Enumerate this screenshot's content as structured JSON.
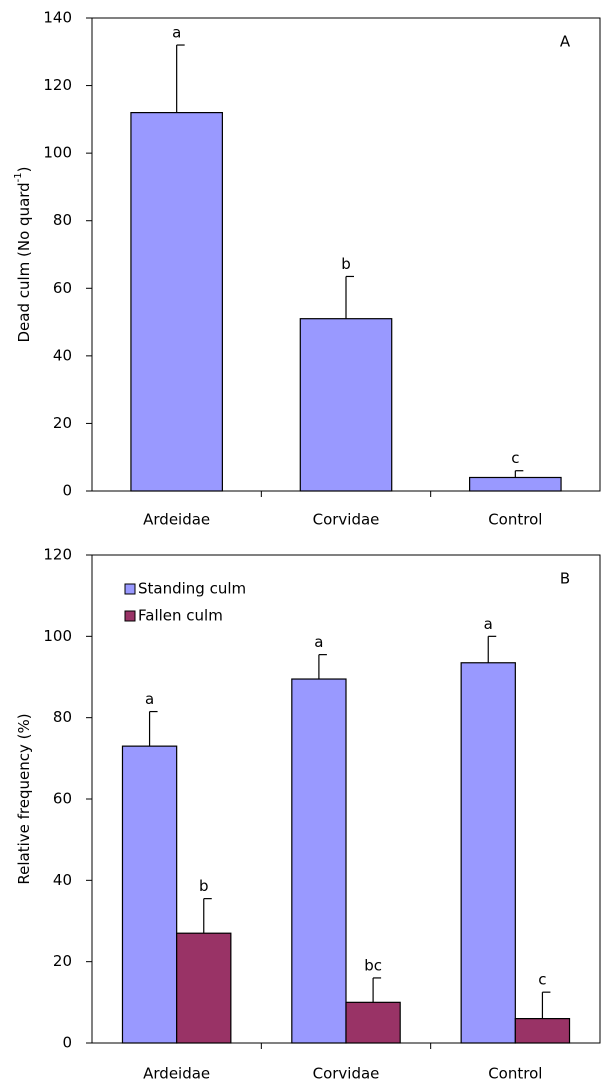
{
  "chart_data": [
    {
      "type": "bar",
      "panel_label": "A",
      "ylabel": "Dead culm (No quard",
      "ylabel_sup": "-1",
      "ylabel_end": ")",
      "categories": [
        "Ardeidae",
        "Corvidae",
        "Control"
      ],
      "series": [
        {
          "color": "#9999ff",
          "values": [
            112,
            51,
            4
          ],
          "errors": [
            20,
            12.5,
            2
          ],
          "letters": [
            "a",
            "b",
            "c"
          ]
        }
      ],
      "ylim": [
        0,
        140
      ],
      "yticks": [
        0,
        20,
        40,
        60,
        80,
        100,
        120,
        140
      ]
    },
    {
      "type": "bar",
      "panel_label": "B",
      "ylabel": "Relative frequency (%)",
      "categories": [
        "Ardeidae",
        "Corvidae",
        "Control"
      ],
      "series": [
        {
          "name": "Standing culm",
          "color": "#9999ff",
          "values": [
            73,
            89.5,
            93.5
          ],
          "errors": [
            8.5,
            6,
            6.5
          ],
          "letters": [
            "a",
            "a",
            "a"
          ]
        },
        {
          "name": "Fallen culm",
          "color": "#993366",
          "values": [
            27,
            10,
            6
          ],
          "errors": [
            8.5,
            6,
            6.5
          ],
          "letters": [
            "b",
            "bc",
            "c"
          ]
        }
      ],
      "ylim": [
        0,
        120
      ],
      "yticks": [
        0,
        20,
        40,
        60,
        80,
        100,
        120
      ],
      "legend": "top-left"
    }
  ]
}
